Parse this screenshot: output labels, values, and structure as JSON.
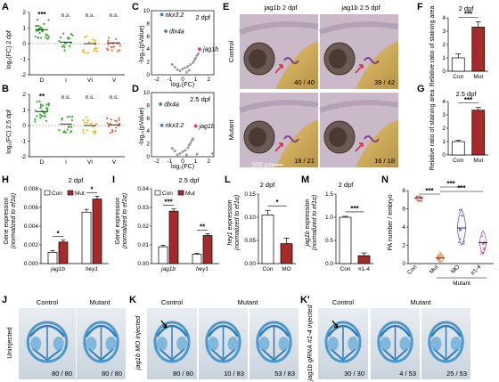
{
  "panels": {
    "A": {
      "label": "A",
      "ylabel": "log₂(FC) 2 dpf",
      "categories": [
        "D",
        "I",
        "VI",
        "V"
      ],
      "sig": [
        "***",
        "n.s.",
        "n.s.",
        "n.s."
      ],
      "yticks": [
        "2",
        "1",
        "0",
        "-1",
        "-2"
      ],
      "ylim": [
        -2,
        2
      ],
      "colors": [
        "#3aa832",
        "#3aa832",
        "#f0b400",
        "#e86a3a"
      ]
    },
    "B": {
      "label": "B",
      "ylabel": "log₂(FC) 2.5 dpf",
      "categories": [
        "D",
        "I",
        "VI",
        "V"
      ],
      "sig": [
        "**",
        "n.s.",
        "n.s.",
        "n.s."
      ],
      "yticks": [
        "2",
        "1",
        "0",
        "-1",
        "-2"
      ],
      "ylim": [
        -2,
        2
      ]
    },
    "C": {
      "label": "C",
      "title": "2 dpf",
      "xlabel": "log₂(FC)",
      "ylabel": "-log₁₀(pValue)",
      "xticks": [
        "-2",
        "-1",
        "0",
        "1",
        "2"
      ],
      "yticks": [
        "0",
        "2",
        "4",
        "6",
        "8",
        "10"
      ],
      "genes": [
        "nkx3.2",
        "dlx4a",
        "jag1b"
      ]
    },
    "D": {
      "label": "D",
      "title": "2.5 dpf",
      "xlabel": "log₂(FC)",
      "ylabel": "-log₁₀(pValue)",
      "xticks": [
        "-2",
        "-1",
        "0",
        "1",
        "2"
      ],
      "yticks": [
        "0",
        "2",
        "4",
        "6",
        "8",
        "10"
      ],
      "genes": [
        "dlx4a",
        "nkx3.2",
        "jag1b"
      ]
    },
    "E": {
      "label": "E",
      "col1": "jag1b 2 dpf",
      "col2": "jag1b 2.5 dpf",
      "row1": "Control",
      "row2": "Mutant",
      "counts": [
        "40 / 40",
        "39 / 42",
        "18 / 21",
        "16 / 18"
      ],
      "scale": "500 µm"
    },
    "F": {
      "label": "F",
      "title": "2 dpf",
      "ylabel": "Relative ratio of staining area",
      "categories": [
        "Con",
        "Mut"
      ],
      "sig": "***",
      "yticks": [
        "0",
        "1",
        "2",
        "3",
        "4"
      ]
    },
    "G": {
      "label": "G",
      "title": "2.5 dpf",
      "ylabel": "Relative ratio of staining area",
      "categories": [
        "Con",
        "Mut"
      ],
      "sig": "***",
      "yticks": [
        "0",
        "1",
        "2",
        "3",
        "4"
      ]
    },
    "H": {
      "label": "H",
      "title": "2 dpf",
      "legend": [
        "Con",
        "Mut"
      ],
      "ylabel1": "Gene expression",
      "ylabel2": "(normalized to ef1α)",
      "categories": [
        "jag1b",
        "hey1"
      ],
      "sig": [
        "*",
        "*"
      ],
      "yticks": [
        "0.000",
        "0.002",
        "0.004",
        "0.006",
        "0.008"
      ]
    },
    "I": {
      "label": "I",
      "title": "2.5 dpf",
      "legend": [
        "Con",
        "Mut"
      ],
      "ylabel1": "Gene expression",
      "ylabel2": "(normalized to ef1α)",
      "categories": [
        "jag1b",
        "hey1"
      ],
      "sig": [
        "***",
        "**"
      ],
      "yticks": [
        "0.00",
        "0.01",
        "0.02",
        "0.03",
        "0.04"
      ]
    },
    "L": {
      "label": "L",
      "title": "2 dpf",
      "ylabel1": "hey1 expression",
      "ylabel2": "(normalized to ef1α)",
      "categories": [
        "Con",
        "MO"
      ],
      "sig": "*",
      "yticks": [
        "0.00",
        "0.05",
        "0.10",
        "0.15"
      ]
    },
    "M": {
      "label": "M",
      "title": "2 dpf",
      "ylabel1": "jag1b expression",
      "ylabel2": "(normalized to ef1α)",
      "categories": [
        "Con",
        "#1-4"
      ],
      "sig": "***",
      "yticks": [
        "0.0",
        "0.5",
        "1.0",
        "1.5"
      ]
    },
    "N": {
      "label": "N",
      "ylabel": "PA number / embryo",
      "categories": [
        "Con",
        "Mut",
        "MO",
        "#1-4"
      ],
      "group": "Mutant",
      "sig": [
        "***",
        "***",
        "***"
      ],
      "yticks": [
        "0",
        "2",
        "4",
        "6",
        "8"
      ]
    },
    "J": {
      "label": "J",
      "row": "Uninjected",
      "cols": [
        "Control",
        "Mutant"
      ],
      "counts": [
        "80 / 80",
        "80 / 80"
      ]
    },
    "K": {
      "label": "K",
      "row": "jag1b MO injected",
      "cols": [
        "Control",
        "Mutant"
      ],
      "counts": [
        "80 / 80",
        "10 / 83",
        "53 / 83"
      ]
    },
    "Kp": {
      "label": "K'",
      "row": "jag1b gRNA #1-4 injected",
      "cols": [
        "Control",
        "Mutant"
      ],
      "counts": [
        "30 / 30",
        "4 / 53",
        "25 / 53"
      ]
    }
  },
  "colors": {
    "con": "#ffffff",
    "mut": "#a52a2a",
    "blue": "#3b7fc4",
    "red": "#e0405a"
  },
  "chart_data": [
    {
      "type": "bar",
      "panel": "F",
      "title": "2 dpf",
      "ylabel": "Relative ratio of staining area",
      "categories": [
        "Con",
        "Mut"
      ],
      "values": [
        1.0,
        3.3
      ],
      "errors": [
        0.3,
        0.4
      ],
      "ylim": [
        0,
        4
      ]
    },
    {
      "type": "bar",
      "panel": "G",
      "title": "2.5 dpf",
      "ylabel": "Relative ratio of staining area",
      "categories": [
        "Con",
        "Mut"
      ],
      "values": [
        1.0,
        3.35
      ],
      "errors": [
        0.1,
        0.2
      ],
      "ylim": [
        0,
        4
      ]
    },
    {
      "type": "bar",
      "panel": "H",
      "title": "2 dpf",
      "categories": [
        "jag1b",
        "hey1"
      ],
      "series": [
        {
          "name": "Con",
          "values": [
            0.0012,
            0.0055
          ]
        },
        {
          "name": "Mut",
          "values": [
            0.0023,
            0.0069
          ]
        }
      ],
      "errors": [
        [
          0.0002,
          0.0003
        ],
        [
          0.0002,
          0.0003
        ]
      ],
      "ylim": [
        0,
        0.008
      ]
    },
    {
      "type": "bar",
      "panel": "I",
      "title": "2.5 dpf",
      "categories": [
        "jag1b",
        "hey1"
      ],
      "series": [
        {
          "name": "Con",
          "values": [
            0.009,
            0.005
          ]
        },
        {
          "name": "Mut",
          "values": [
            0.028,
            0.015
          ]
        }
      ],
      "errors": [
        [
          0.0008,
          0.0005
        ],
        [
          0.0012,
          0.001
        ]
      ],
      "ylim": [
        0,
        0.04
      ]
    },
    {
      "type": "bar",
      "panel": "L",
      "title": "2 dpf",
      "categories": [
        "Con",
        "MO"
      ],
      "values": [
        0.105,
        0.043
      ],
      "errors": [
        0.01,
        0.012
      ],
      "ylim": [
        0,
        0.15
      ]
    },
    {
      "type": "bar",
      "panel": "M",
      "title": "2 dpf",
      "categories": [
        "Con",
        "#1-4"
      ],
      "values": [
        1.0,
        0.17
      ],
      "errors": [
        0.02,
        0.06
      ],
      "ylim": [
        0,
        1.5
      ]
    },
    {
      "type": "scatter",
      "panel": "C",
      "title": "2 dpf",
      "xlim": [
        -2.4,
        2.4
      ],
      "ylim": [
        0,
        10
      ],
      "highlight": [
        {
          "gene": "nkx3.2",
          "x": -1.6,
          "y": 9.4,
          "color": "blue"
        },
        {
          "gene": "dlx4a",
          "x": -1.3,
          "y": 6.8,
          "color": "blue"
        },
        {
          "gene": "jag1b",
          "x": 1.3,
          "y": 4.0,
          "color": "red"
        }
      ],
      "points": [
        [
          -0.2,
          0.6
        ],
        [
          0.0,
          0.9
        ],
        [
          0.2,
          1.1
        ],
        [
          0.4,
          1.3
        ],
        [
          0.6,
          1.6
        ],
        [
          0.8,
          1.9
        ],
        [
          0.9,
          2.3
        ],
        [
          1.0,
          2.6
        ],
        [
          1.1,
          3.0
        ],
        [
          -0.4,
          0.8
        ],
        [
          -0.6,
          1.2
        ],
        [
          -0.8,
          1.6
        ],
        [
          0.3,
          0.4
        ],
        [
          0.5,
          0.7
        ],
        [
          1.2,
          3.3
        ]
      ]
    },
    {
      "type": "scatter",
      "panel": "D",
      "title": "2.5 dpf",
      "xlim": [
        -2.4,
        2.4
      ],
      "ylim": [
        0,
        10
      ],
      "highlight": [
        {
          "gene": "dlx4a",
          "x": -1.7,
          "y": 8.2,
          "color": "blue"
        },
        {
          "gene": "nkx3.2",
          "x": -1.6,
          "y": 4.9,
          "color": "blue"
        },
        {
          "gene": "jag1b",
          "x": 1.0,
          "y": 4.8,
          "color": "red"
        }
      ],
      "points": [
        [
          -0.4,
          0.3
        ],
        [
          -0.2,
          0.5
        ],
        [
          0.0,
          0.8
        ],
        [
          0.2,
          1.0
        ],
        [
          0.4,
          1.4
        ],
        [
          0.5,
          1.8
        ],
        [
          0.6,
          2.1
        ],
        [
          0.7,
          2.5
        ],
        [
          0.8,
          2.8
        ],
        [
          -0.6,
          0.9
        ],
        [
          -0.8,
          1.3
        ],
        [
          0.3,
          0.3
        ],
        [
          1.1,
          0.4
        ],
        [
          2.3,
          0.5
        ]
      ]
    },
    {
      "type": "scatter",
      "panel": "N",
      "categories": [
        "Con",
        "Mut",
        "MO",
        "#1-4"
      ],
      "means": [
        7.2,
        0.6,
        3.9,
        2.3
      ],
      "ylim": [
        0,
        8
      ]
    }
  ]
}
